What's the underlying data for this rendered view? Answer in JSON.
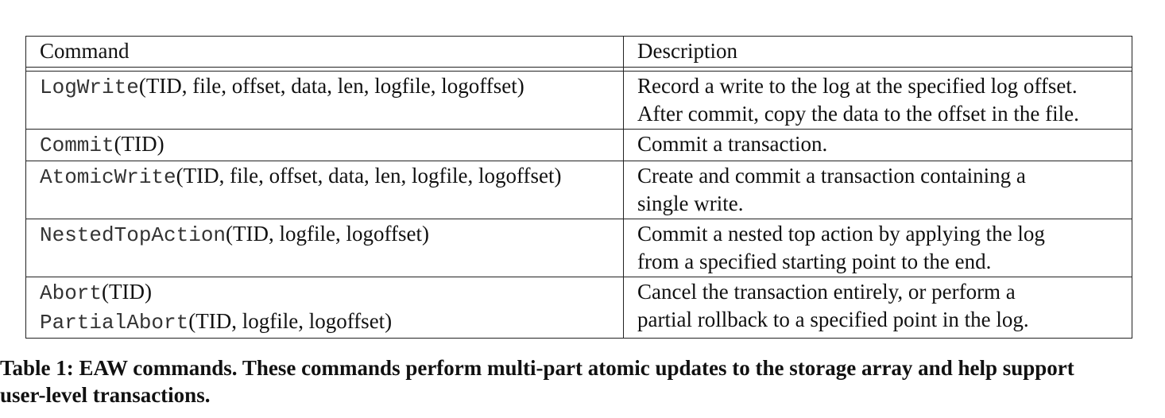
{
  "table": {
    "headers": [
      "Command",
      "Description"
    ],
    "rows": [
      {
        "command": [
          {
            "name": "LogWrite",
            "args": "(TID, file, offset, data, len, logfile, logoffset)"
          }
        ],
        "description": [
          "Record a write to the log at the specified log offset.",
          "After commit, copy the data to the offset in the file."
        ]
      },
      {
        "command": [
          {
            "name": "Commit",
            "args": "(TID)"
          }
        ],
        "description": [
          "Commit a transaction."
        ]
      },
      {
        "command": [
          {
            "name": "AtomicWrite",
            "args": "(TID, file, offset, data, len, logfile, logoffset)"
          }
        ],
        "description": [
          "Create and commit a transaction containing a",
          "single write."
        ]
      },
      {
        "command": [
          {
            "name": "NestedTopAction",
            "args": "(TID, logfile, logoffset)"
          }
        ],
        "description": [
          "Commit a nested top action by applying the log",
          "from a specified starting point to the end."
        ]
      },
      {
        "command": [
          {
            "name": "Abort",
            "args": "(TID)"
          },
          {
            "name": "PartialAbort",
            "args": "(TID, logfile, logoffset)"
          }
        ],
        "description": [
          "Cancel the transaction entirely, or perform a",
          "partial rollback to a specified point in the log."
        ]
      }
    ]
  },
  "caption": {
    "lines": [
      "Table 1: EAW commands. These commands perform multi-part atomic updates to the storage array and help support",
      "user-level transactions."
    ]
  }
}
